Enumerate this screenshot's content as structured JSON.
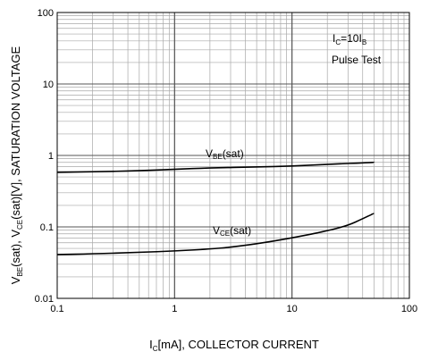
{
  "chart_data": {
    "type": "line",
    "x_scale": "log",
    "y_scale": "log",
    "xlim": [
      0.1,
      100
    ],
    "ylim": [
      0.01,
      100
    ],
    "grid": true,
    "x_ticks": [
      {
        "value": 0.1,
        "label": "0.1"
      },
      {
        "value": 1,
        "label": "1"
      },
      {
        "value": 10,
        "label": "10"
      },
      {
        "value": 100,
        "label": "100"
      }
    ],
    "y_ticks": [
      {
        "value": 0.01,
        "label": "0.01"
      },
      {
        "value": 0.1,
        "label": "0.1"
      },
      {
        "value": 1,
        "label": "1"
      },
      {
        "value": 10,
        "label": "10"
      },
      {
        "value": 100,
        "label": "100"
      }
    ],
    "xlabel": {
      "main": "I",
      "sub": "C",
      "rest": "[mA], COLLECTOR CURRENT"
    },
    "ylabel": {
      "parts": [
        {
          "t": "V",
          "sub": false
        },
        {
          "t": "BE",
          "sub": true
        },
        {
          "t": "(sat), V",
          "sub": false
        },
        {
          "t": "CE",
          "sub": true
        },
        {
          "t": "(sat)[V], SATURATION VOLTAGE",
          "sub": false
        }
      ]
    },
    "conditions": {
      "line1": {
        "main": "I",
        "sub": "C",
        "mid": "=10I",
        "sub2": "B"
      },
      "line2": "Pulse Test"
    },
    "series": [
      {
        "name": "VBE(sat)",
        "label_main": "V",
        "label_sub": "BE",
        "label_rest": "(sat)",
        "x": [
          0.1,
          0.2,
          0.5,
          1,
          2,
          5,
          10,
          20,
          50
        ],
        "y": [
          0.58,
          0.59,
          0.61,
          0.64,
          0.67,
          0.69,
          0.71,
          0.75,
          0.8
        ]
      },
      {
        "name": "VCE(sat)",
        "label_main": "V",
        "label_sub": "CE",
        "label_rest": "(sat)",
        "x": [
          0.1,
          0.2,
          0.5,
          1,
          2,
          3,
          5,
          10,
          20,
          30,
          40,
          50
        ],
        "y": [
          0.041,
          0.042,
          0.044,
          0.046,
          0.049,
          0.052,
          0.058,
          0.07,
          0.088,
          0.105,
          0.13,
          0.155
        ]
      }
    ]
  }
}
